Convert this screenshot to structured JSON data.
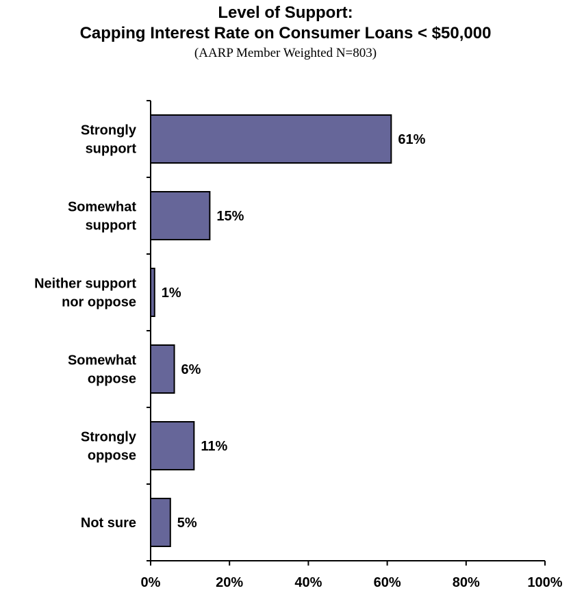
{
  "chart_data": {
    "type": "bar",
    "orientation": "horizontal",
    "title_lines": [
      "Level of Support:",
      "Capping Interest Rate on Consumer Loans < $50,000"
    ],
    "subtitle": "(AARP Member Weighted N=803)",
    "categories": [
      [
        "Strongly",
        "support"
      ],
      [
        "Somewhat",
        "support"
      ],
      [
        "Neither support",
        "nor oppose"
      ],
      [
        "Somewhat",
        "oppose"
      ],
      [
        "Strongly",
        "oppose"
      ],
      [
        "Not sure"
      ]
    ],
    "values": [
      61,
      15,
      1,
      6,
      11,
      5
    ],
    "value_labels": [
      "61%",
      "15%",
      "1%",
      "6%",
      "11%",
      "5%"
    ],
    "xlim": [
      0,
      100
    ],
    "x_ticks": [
      0,
      20,
      40,
      60,
      80,
      100
    ],
    "x_tick_labels": [
      "0%",
      "20%",
      "40%",
      "60%",
      "80%",
      "100%"
    ],
    "bar_color": "#666699",
    "grid": false,
    "legend": "none"
  }
}
